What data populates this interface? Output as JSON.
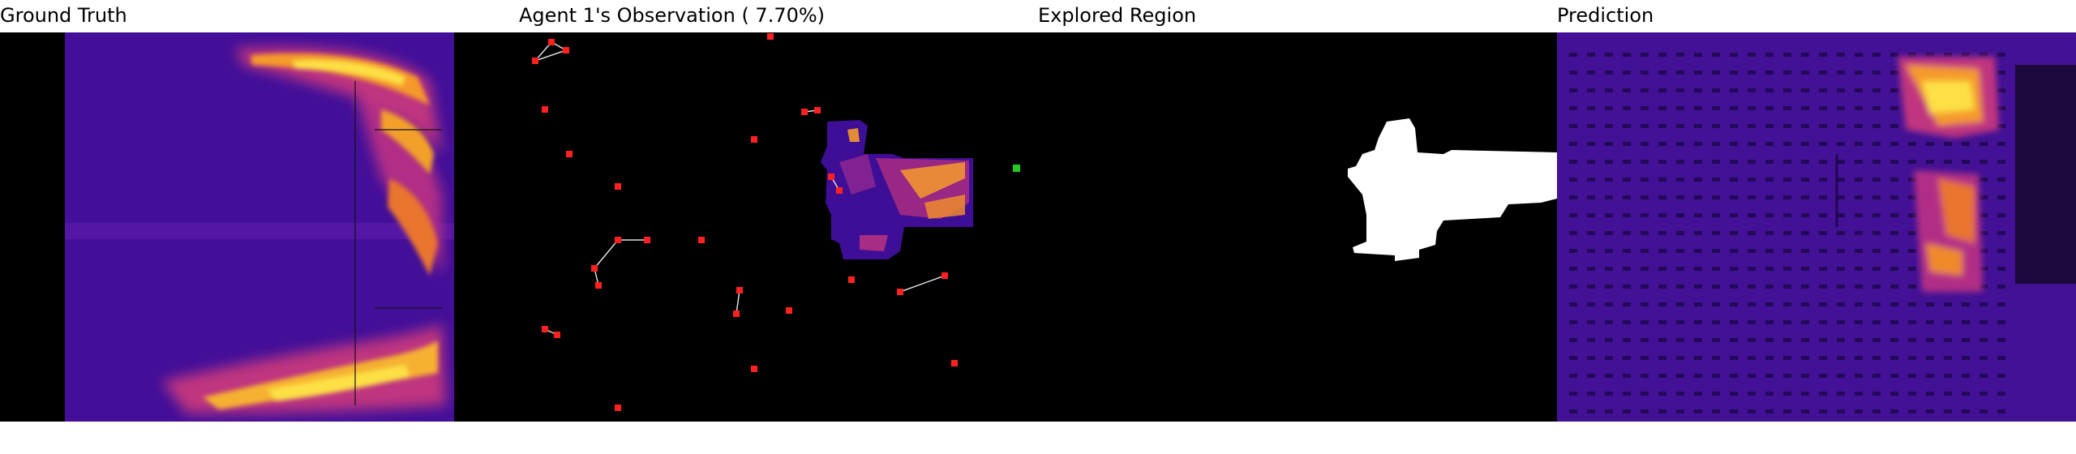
{
  "titles": {
    "ground_truth": "Ground Truth",
    "observation": "Agent 1's Observation ( 7.70%)",
    "explored": "Explored Region",
    "prediction": "Prediction"
  },
  "colors": {
    "background": "#000000",
    "heat_low": "#3b0a8c",
    "heat_mid": "#b8308a",
    "heat_high": "#fde725",
    "agent": "#ff2020",
    "goal": "#22cc22",
    "explored": "#ffffff"
  },
  "observation": {
    "coverage_percent": 7.7
  }
}
